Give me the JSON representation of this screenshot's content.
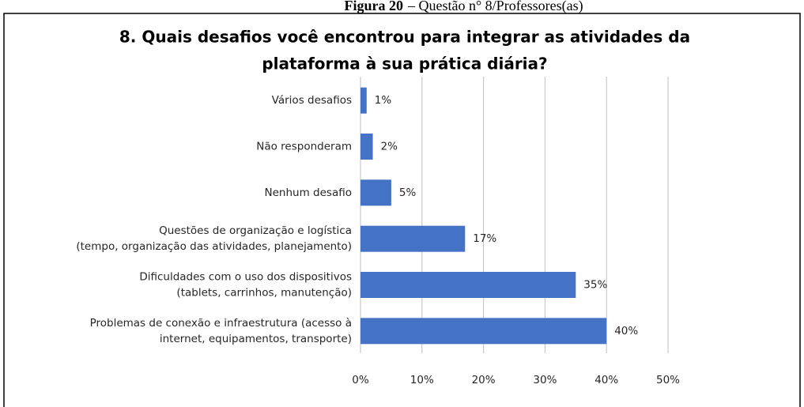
{
  "caption": {
    "label": "Figura 20",
    "text": "– Questão n° 8/Professores(as)"
  },
  "chart_data": {
    "type": "bar",
    "orientation": "horizontal",
    "title": [
      "8. Quais desafios você encontrou para integrar as atividades da",
      "plataforma à sua prática diária?"
    ],
    "categories": [
      [
        "Vários desafios"
      ],
      [
        "Não responderam"
      ],
      [
        "Nenhum desafio"
      ],
      [
        "Questões de organização e logística",
        "(tempo, organização das atividades, planejamento)"
      ],
      [
        "Dificuldades com o uso dos dispositivos",
        "(tablets, carrinhos, manutenção)"
      ],
      [
        "Problemas de conexão e infraestrutura (acesso à",
        "internet, equipamentos, transporte)"
      ]
    ],
    "values": [
      1,
      2,
      5,
      17,
      35,
      40
    ],
    "value_labels": [
      "1%",
      "2%",
      "5%",
      "17%",
      "35%",
      "40%"
    ],
    "color": "#4472c4",
    "xlim": [
      0,
      50
    ],
    "xticks": [
      {
        "value": 0,
        "label": "0%"
      },
      {
        "value": 10,
        "label": "10%"
      },
      {
        "value": 20,
        "label": "20%"
      },
      {
        "value": 30,
        "label": "30%"
      },
      {
        "value": 40,
        "label": "40%"
      },
      {
        "value": 50,
        "label": "50%"
      }
    ],
    "grid": true
  }
}
